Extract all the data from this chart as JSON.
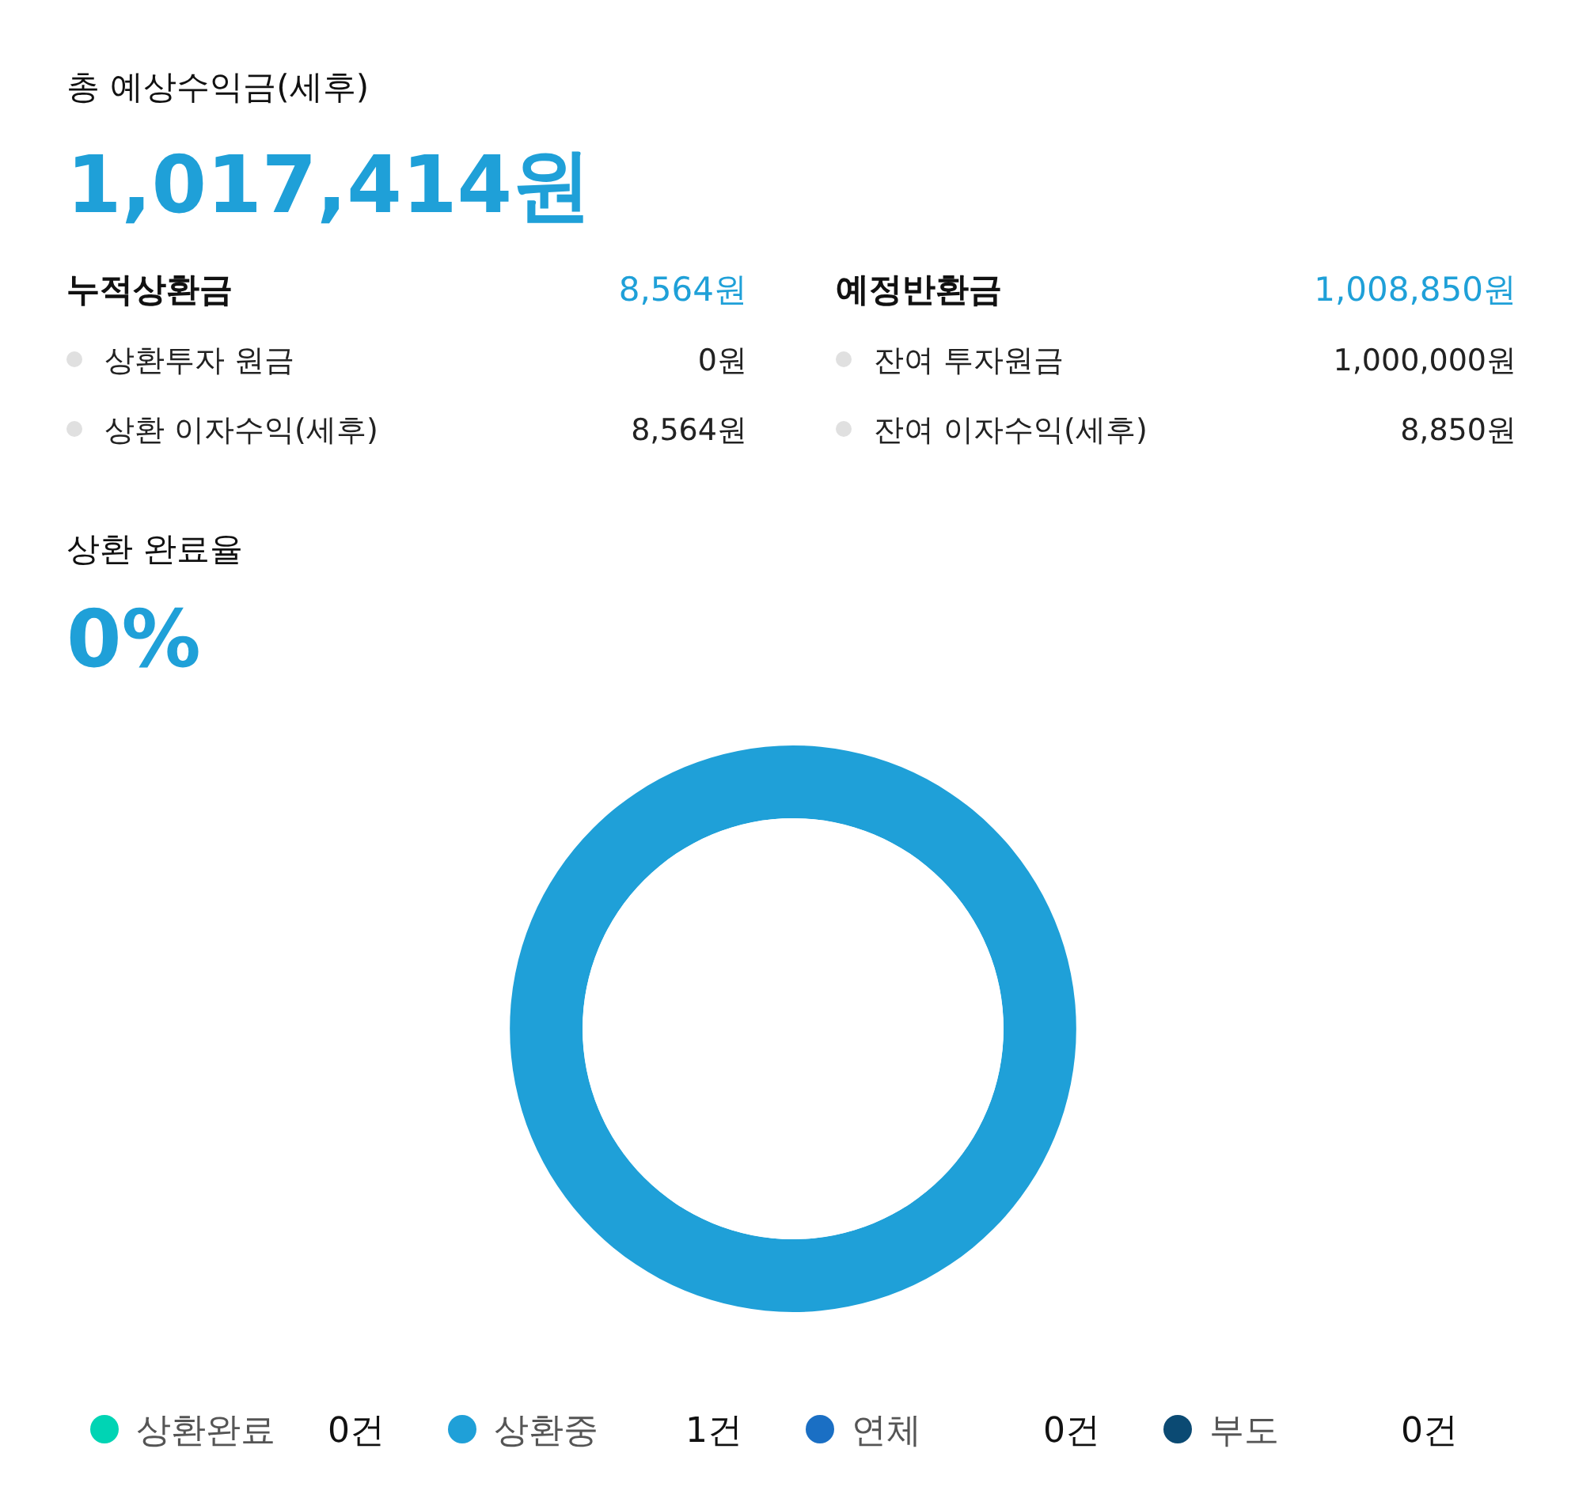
{
  "chart_data": [
    {
      "type": "other",
      "title": "총 예상수익금(세후)",
      "subtitle": "1,017,414원",
      "annotations": [
        "누적상환금",
        "8,564원",
        "상환투자 원금",
        "0원",
        "상환 이자수익(세후)",
        "8,564원",
        "예정반환금",
        "1,008,850원",
        "잔여 투자원금",
        "1,000,000원",
        "잔여 이자수익(세후)",
        "8,850원"
      ]
    },
    {
      "type": "donut",
      "title": "상환 완료율",
      "subtitle": "0%",
      "categories": [
        "상환완료",
        "상환중",
        "연체",
        "부도"
      ],
      "values": [
        0,
        1,
        0,
        0
      ],
      "value_labels": [
        "0건",
        "1건",
        "0건",
        "0건"
      ],
      "colors": [
        "#00d4b4",
        "#1fa0d8",
        "#1a6fc4",
        "#0b4a73"
      ],
      "legend": "bottom"
    }
  ]
}
